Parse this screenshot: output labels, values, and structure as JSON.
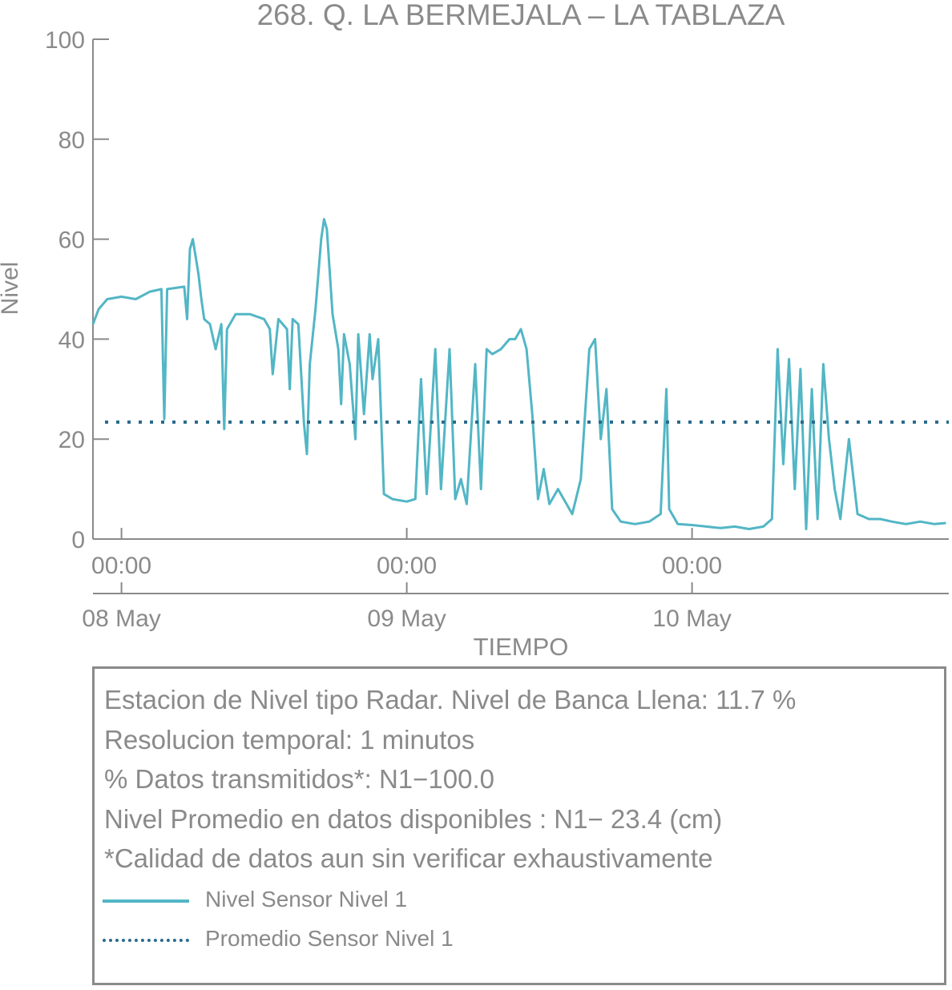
{
  "chart_data": {
    "type": "line",
    "title": "268. Q. LA BERMEJALA – LA TABLAZA",
    "xlabel": "TIEMPO",
    "ylabel": "Nivel",
    "ylim": [
      0,
      100
    ],
    "yticks": [
      "0",
      "20",
      "40",
      "60",
      "80",
      "100"
    ],
    "xlim_days": [
      -0.1,
      2.9
    ],
    "xticks": [
      {
        "day": 0,
        "time": "00:00",
        "date": "08 May"
      },
      {
        "day": 1,
        "time": "00:00",
        "date": "09 May"
      },
      {
        "day": 2,
        "time": "00:00",
        "date": "10 May"
      }
    ],
    "colors": {
      "series": "#52b6c5",
      "mean": "#2a6b8c",
      "text": "#8a8a8a"
    },
    "series": [
      {
        "name": "Nivel Sensor Nivel 1",
        "style": "solid",
        "points": [
          [
            -0.1,
            43
          ],
          [
            -0.08,
            46
          ],
          [
            -0.05,
            48
          ],
          [
            0.0,
            48.5
          ],
          [
            0.05,
            48
          ],
          [
            0.1,
            49.5
          ],
          [
            0.14,
            50
          ],
          [
            0.15,
            24
          ],
          [
            0.16,
            50
          ],
          [
            0.22,
            50.5
          ],
          [
            0.23,
            44
          ],
          [
            0.24,
            58
          ],
          [
            0.25,
            60
          ],
          [
            0.27,
            53
          ],
          [
            0.28,
            48
          ],
          [
            0.29,
            44
          ],
          [
            0.31,
            43
          ],
          [
            0.33,
            38
          ],
          [
            0.35,
            43
          ],
          [
            0.36,
            22
          ],
          [
            0.37,
            42
          ],
          [
            0.4,
            45
          ],
          [
            0.45,
            45
          ],
          [
            0.5,
            44
          ],
          [
            0.52,
            42
          ],
          [
            0.53,
            33
          ],
          [
            0.55,
            44
          ],
          [
            0.58,
            42
          ],
          [
            0.59,
            30
          ],
          [
            0.6,
            44
          ],
          [
            0.62,
            43
          ],
          [
            0.64,
            23
          ],
          [
            0.65,
            17
          ],
          [
            0.66,
            35
          ],
          [
            0.68,
            46
          ],
          [
            0.7,
            60
          ],
          [
            0.71,
            64
          ],
          [
            0.72,
            62
          ],
          [
            0.74,
            45
          ],
          [
            0.76,
            38
          ],
          [
            0.77,
            27
          ],
          [
            0.78,
            41
          ],
          [
            0.8,
            35
          ],
          [
            0.82,
            20
          ],
          [
            0.83,
            41
          ],
          [
            0.85,
            25
          ],
          [
            0.87,
            41
          ],
          [
            0.88,
            32
          ],
          [
            0.9,
            40
          ],
          [
            0.92,
            9
          ],
          [
            0.95,
            8
          ],
          [
            1.0,
            7.5
          ],
          [
            1.03,
            8
          ],
          [
            1.05,
            32
          ],
          [
            1.07,
            9
          ],
          [
            1.1,
            38
          ],
          [
            1.12,
            10
          ],
          [
            1.15,
            38
          ],
          [
            1.17,
            8
          ],
          [
            1.19,
            12
          ],
          [
            1.21,
            7
          ],
          [
            1.24,
            35
          ],
          [
            1.26,
            10
          ],
          [
            1.28,
            38
          ],
          [
            1.3,
            37
          ],
          [
            1.33,
            38
          ],
          [
            1.36,
            40
          ],
          [
            1.38,
            40
          ],
          [
            1.4,
            42
          ],
          [
            1.42,
            38
          ],
          [
            1.44,
            25
          ],
          [
            1.46,
            8
          ],
          [
            1.48,
            14
          ],
          [
            1.5,
            7
          ],
          [
            1.53,
            10
          ],
          [
            1.56,
            7
          ],
          [
            1.58,
            5
          ],
          [
            1.61,
            12
          ],
          [
            1.64,
            38
          ],
          [
            1.66,
            40
          ],
          [
            1.68,
            20
          ],
          [
            1.7,
            30
          ],
          [
            1.72,
            6
          ],
          [
            1.75,
            3.5
          ],
          [
            1.8,
            3
          ],
          [
            1.85,
            3.5
          ],
          [
            1.89,
            5
          ],
          [
            1.91,
            30
          ],
          [
            1.92,
            6
          ],
          [
            1.95,
            3
          ],
          [
            2.0,
            2.8
          ],
          [
            2.05,
            2.5
          ],
          [
            2.1,
            2.2
          ],
          [
            2.15,
            2.5
          ],
          [
            2.2,
            2
          ],
          [
            2.25,
            2.5
          ],
          [
            2.28,
            4
          ],
          [
            2.3,
            38
          ],
          [
            2.32,
            15
          ],
          [
            2.34,
            36
          ],
          [
            2.36,
            10
          ],
          [
            2.38,
            34
          ],
          [
            2.4,
            2
          ],
          [
            2.42,
            30
          ],
          [
            2.44,
            4
          ],
          [
            2.46,
            35
          ],
          [
            2.48,
            20
          ],
          [
            2.5,
            10
          ],
          [
            2.52,
            4
          ],
          [
            2.55,
            20
          ],
          [
            2.58,
            5
          ],
          [
            2.62,
            4
          ],
          [
            2.66,
            4
          ],
          [
            2.7,
            3.5
          ],
          [
            2.75,
            3
          ],
          [
            2.8,
            3.5
          ],
          [
            2.85,
            3
          ],
          [
            2.89,
            3.2
          ]
        ]
      },
      {
        "name": "Promedio Sensor Nivel 1",
        "style": "dotted",
        "value": 23.4
      }
    ]
  },
  "info": {
    "lines": [
      "Estacion de Nivel tipo Radar. Nivel de Banca Llena: 11.7 %",
      "Resolucion temporal: 1 minutos",
      "% Datos transmitidos*: N1−100.0",
      "Nivel Promedio en datos disponibles : N1− 23.4 (cm)",
      "*Calidad de datos aun sin verificar exhaustivamente"
    ]
  }
}
